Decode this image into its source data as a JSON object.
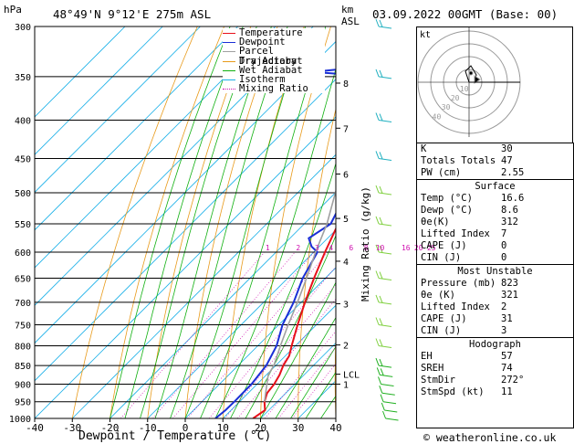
{
  "header": {
    "pressure_unit": "hPa",
    "location": "48°49'N  9°12'E  275m  ASL",
    "km_label": "km",
    "asl_label": "ASL",
    "datetime": "03.09.2022  00GMT  (Base: 00)"
  },
  "legend": [
    {
      "label": "Temperature",
      "color": "#e8101a"
    },
    {
      "label": "Dewpoint",
      "color": "#1a2fd6"
    },
    {
      "label": "Parcel Trajectory",
      "color": "#a0a0a0"
    },
    {
      "label": "Dry Adiabat",
      "color": "#e89a1a"
    },
    {
      "label": "Wet Adiabat",
      "color": "#10b010"
    },
    {
      "label": "Isotherm",
      "color": "#1ab0e8"
    },
    {
      "label": "Mixing Ratio",
      "color": "#d010b0"
    }
  ],
  "chart_data": {
    "type": "line",
    "xlabel": "Dewpoint / Temperature (°C)",
    "ylabel": "hPa",
    "right_axis_label": "Mixing Ratio (g/kg)",
    "xlim": [
      -40,
      40
    ],
    "ylim": [
      1000,
      300
    ],
    "x_ticks": [
      "-40",
      "-30",
      "-20",
      "-10",
      "0",
      "10",
      "20",
      "30",
      "40"
    ],
    "pressure_levels": [
      "300",
      "350",
      "400",
      "450",
      "500",
      "550",
      "600",
      "650",
      "700",
      "750",
      "800",
      "850",
      "900",
      "950",
      "1000"
    ],
    "km_ticks": [
      "8",
      "7",
      "6",
      "5",
      "4",
      "3",
      "2",
      "1",
      "LCL"
    ],
    "mixing_ratio_labels": [
      "1",
      "2",
      "3",
      "4",
      "6",
      "8",
      "10",
      "16",
      "20",
      "25"
    ],
    "series": [
      {
        "name": "Temperature",
        "color": "#e8101a",
        "points": [
          [
            1000,
            18
          ],
          [
            975,
            19
          ],
          [
            950,
            16.6
          ],
          [
            925,
            15
          ],
          [
            900,
            14.5
          ],
          [
            875,
            13.5
          ],
          [
            850,
            12
          ],
          [
            825,
            11
          ],
          [
            800,
            9
          ],
          [
            750,
            5
          ],
          [
            700,
            1
          ],
          [
            650,
            -3
          ],
          [
            600,
            -7
          ],
          [
            550,
            -11
          ],
          [
            500,
            -15
          ],
          [
            475,
            -17
          ],
          [
            450,
            -21
          ],
          [
            400,
            -27
          ],
          [
            350,
            -34
          ],
          [
            300,
            -42
          ]
        ]
      },
      {
        "name": "Dewpoint",
        "color": "#1a2fd6",
        "points": [
          [
            1000,
            8
          ],
          [
            975,
            8.5
          ],
          [
            950,
            8.6
          ],
          [
            900,
            8.5
          ],
          [
            875,
            8
          ],
          [
            850,
            7.5
          ],
          [
            800,
            5
          ],
          [
            750,
            1
          ],
          [
            700,
            -2
          ],
          [
            650,
            -6
          ],
          [
            600,
            -9
          ],
          [
            590,
            -12
          ],
          [
            575,
            -15
          ],
          [
            550,
            -13
          ],
          [
            500,
            -17
          ],
          [
            475,
            -19
          ],
          [
            450,
            -25
          ],
          [
            440,
            -27
          ],
          [
            400,
            -35
          ],
          [
            380,
            -36
          ],
          [
            350,
            -40
          ],
          [
            345,
            -58
          ],
          [
            340,
            -47
          ],
          [
            330,
            -50
          ],
          [
            320,
            -49
          ],
          [
            300,
            -53
          ]
        ]
      },
      {
        "name": "Parcel Trajectory",
        "color": "#a0a0a0",
        "points": [
          [
            950,
            16.6
          ],
          [
            875,
            10.5
          ],
          [
            850,
            9.5
          ],
          [
            800,
            6
          ],
          [
            750,
            2.5
          ],
          [
            700,
            -1
          ],
          [
            650,
            -5
          ],
          [
            600,
            -9.5
          ],
          [
            550,
            -14
          ],
          [
            500,
            -20
          ],
          [
            450,
            -26
          ],
          [
            400,
            -33
          ],
          [
            350,
            -41
          ],
          [
            300,
            -50
          ]
        ]
      }
    ]
  },
  "hodograph": {
    "label": "kt",
    "ring_labels": [
      "10",
      "20",
      "30",
      "40"
    ]
  },
  "indices": {
    "basic": [
      {
        "k": "K",
        "v": "30"
      },
      {
        "k": "Totals Totals",
        "v": "47"
      },
      {
        "k": "PW (cm)",
        "v": "2.55"
      }
    ],
    "surface_title": "Surface",
    "surface": [
      {
        "k": "Temp (°C)",
        "v": "16.6"
      },
      {
        "k": "Dewp (°C)",
        "v": "8.6"
      },
      {
        "k": "θe(K)",
        "v": "312"
      },
      {
        "k": "Lifted Index",
        "v": "7"
      },
      {
        "k": "CAPE (J)",
        "v": "0"
      },
      {
        "k": "CIN (J)",
        "v": "0"
      }
    ],
    "unstable_title": "Most Unstable",
    "unstable": [
      {
        "k": "Pressure (mb)",
        "v": "823"
      },
      {
        "k": "θe (K)",
        "v": "321"
      },
      {
        "k": "Lifted Index",
        "v": "2"
      },
      {
        "k": "CAPE (J)",
        "v": "31"
      },
      {
        "k": "CIN (J)",
        "v": "3"
      }
    ],
    "hodograph_title": "Hodograph",
    "hodo": [
      {
        "k": "EH",
        "v": "57"
      },
      {
        "k": "SREH",
        "v": "74"
      },
      {
        "k": "StmDir",
        "v": "272°"
      },
      {
        "k": "StmSpd (kt)",
        "v": "11"
      }
    ]
  },
  "footer": {
    "copyright": "© weatheronline.co.uk"
  }
}
